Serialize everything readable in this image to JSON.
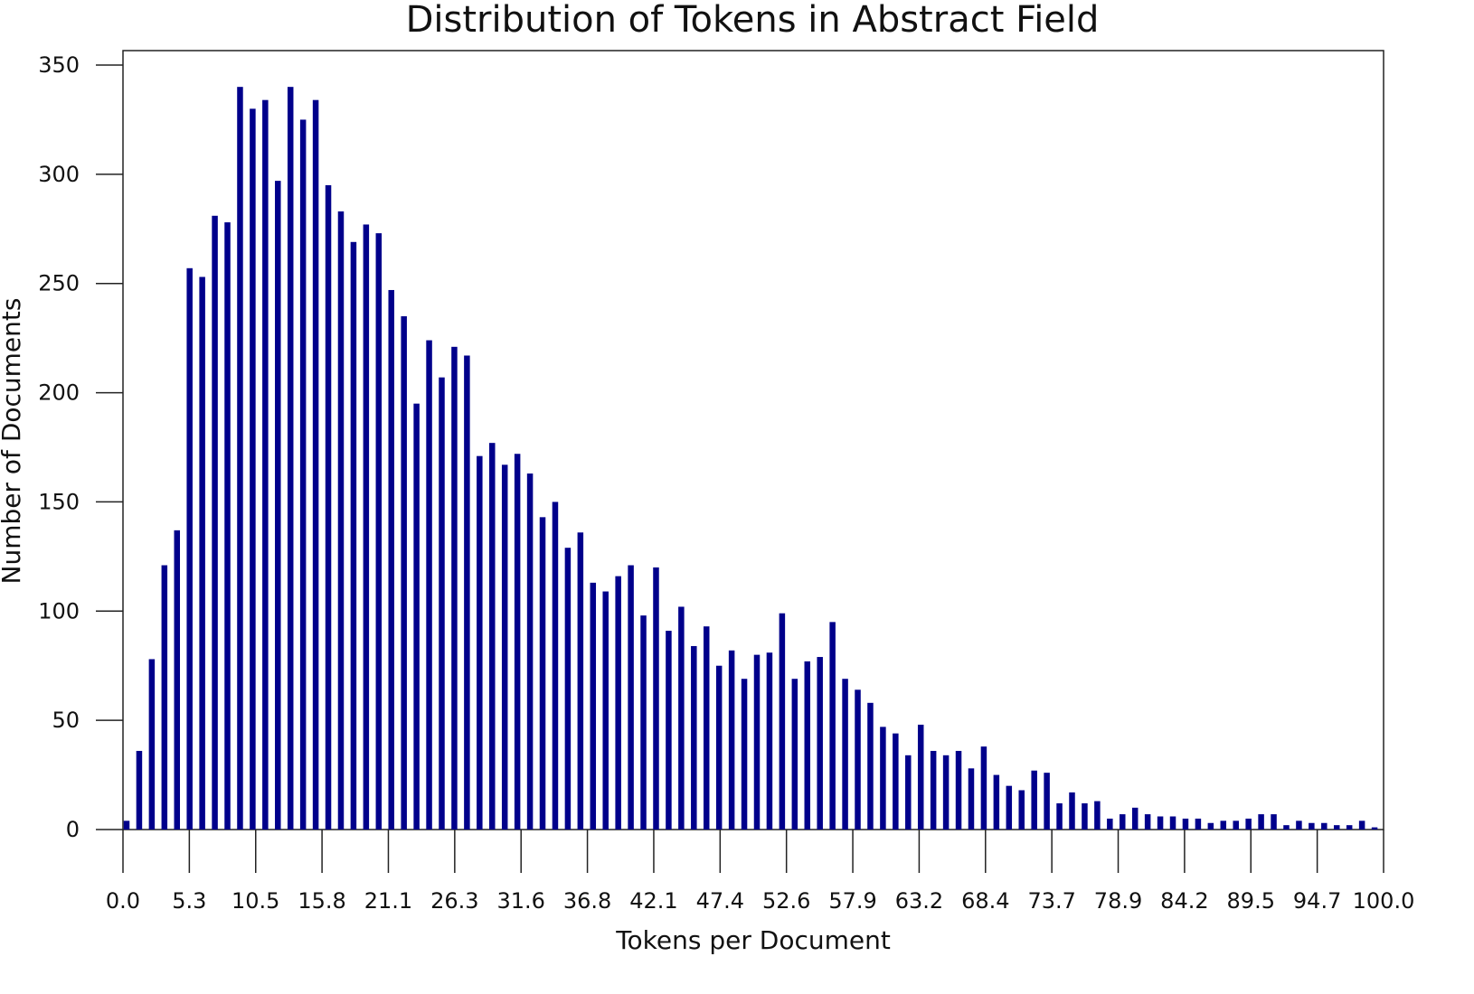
{
  "chart_data": {
    "type": "bar",
    "title": "Distribution of Tokens in Abstract Field",
    "xlabel": "Tokens per Document",
    "ylabel": "Number of Documents",
    "xlim": [
      0,
      100
    ],
    "ylim": [
      0,
      350
    ],
    "y_ticks": [
      "0",
      "50",
      "100",
      "150",
      "200",
      "250",
      "300",
      "350"
    ],
    "x_ticks": [
      "0.0",
      "5.3",
      "10.5",
      "15.8",
      "21.1",
      "26.3",
      "31.6",
      "36.8",
      "42.1",
      "47.4",
      "52.6",
      "57.9",
      "63.2",
      "68.4",
      "73.7",
      "78.9",
      "84.2",
      "89.5",
      "94.7",
      "100.0"
    ],
    "bar_color": "#00008b",
    "grid": false,
    "x": [
      0,
      1,
      2,
      3,
      4,
      5,
      6,
      7,
      8,
      9,
      10,
      11,
      12,
      13,
      14,
      15,
      16,
      17,
      18,
      19,
      20,
      21,
      22,
      23,
      24,
      25,
      26,
      27,
      28,
      29,
      30,
      31,
      32,
      33,
      34,
      35,
      36,
      37,
      38,
      39,
      40,
      41,
      42,
      43,
      44,
      45,
      46,
      47,
      48,
      49,
      50,
      51,
      52,
      53,
      54,
      55,
      56,
      57,
      58,
      59,
      60,
      61,
      62,
      63,
      64,
      65,
      66,
      67,
      68,
      69,
      70,
      71,
      72,
      73,
      74,
      75,
      76,
      77,
      78,
      79,
      80,
      81,
      82,
      83,
      84,
      85,
      86,
      87,
      88,
      89,
      90,
      91,
      92,
      93,
      94,
      95,
      96,
      97,
      98,
      99
    ],
    "values": [
      4,
      36,
      78,
      121,
      137,
      257,
      253,
      281,
      278,
      340,
      330,
      334,
      297,
      340,
      325,
      334,
      295,
      283,
      269,
      277,
      273,
      247,
      235,
      195,
      224,
      207,
      221,
      217,
      171,
      177,
      167,
      172,
      163,
      143,
      150,
      129,
      136,
      113,
      109,
      116,
      121,
      98,
      120,
      91,
      102,
      84,
      93,
      75,
      82,
      69,
      80,
      81,
      99,
      69,
      77,
      79,
      95,
      69,
      64,
      58,
      47,
      44,
      34,
      48,
      36,
      34,
      36,
      28,
      38,
      25,
      20,
      18,
      27,
      26,
      12,
      17,
      12,
      13,
      5,
      7,
      10,
      7,
      6,
      6,
      5,
      5,
      3,
      4,
      4,
      5,
      7,
      7,
      2,
      4,
      3,
      3,
      2,
      2,
      4,
      1
    ]
  }
}
